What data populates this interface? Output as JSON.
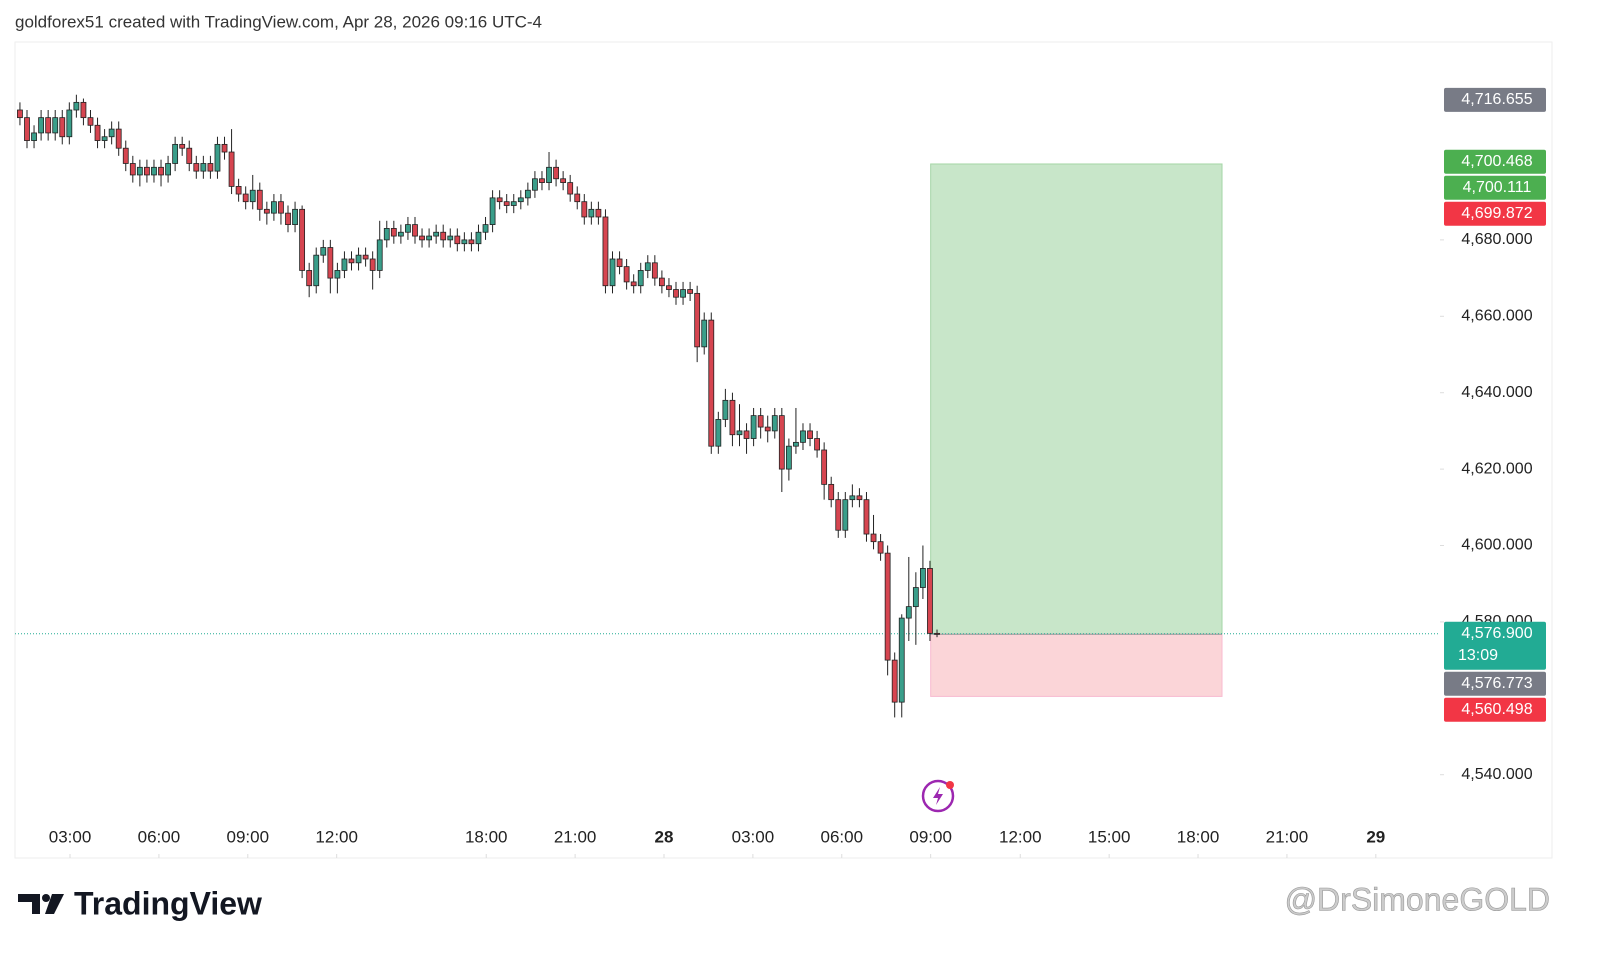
{
  "header": "goldforex51 created with TradingView.com, Apr 28, 2026 09:16 UTC-4",
  "chart_data": {
    "type": "candlestick",
    "up_color": "#3a9e8a",
    "down_color": "#d64550",
    "candles": [
      [
        4714,
        4716,
        4710,
        4712
      ],
      [
        4712,
        4714,
        4704,
        4706
      ],
      [
        4706,
        4710,
        4704,
        4708
      ],
      [
        4708,
        4714,
        4706,
        4712
      ],
      [
        4712,
        4714,
        4706,
        4708
      ],
      [
        4708,
        4714,
        4706,
        4712
      ],
      [
        4712,
        4714,
        4705,
        4707
      ],
      [
        4707,
        4716,
        4705,
        4714
      ],
      [
        4714,
        4718,
        4712,
        4716
      ],
      [
        4716,
        4717,
        4710,
        4712
      ],
      [
        4712,
        4714,
        4708,
        4710
      ],
      [
        4710,
        4712,
        4704,
        4706
      ],
      [
        4706,
        4709,
        4704,
        4707
      ],
      [
        4707,
        4711,
        4705,
        4709
      ],
      [
        4709,
        4711,
        4702,
        4704
      ],
      [
        4704,
        4706,
        4698,
        4700
      ],
      [
        4700,
        4702,
        4695,
        4697
      ],
      [
        4697,
        4701,
        4694,
        4699
      ],
      [
        4699,
        4701,
        4695,
        4697
      ],
      [
        4697,
        4701,
        4695,
        4699
      ],
      [
        4699,
        4701,
        4694,
        4697
      ],
      [
        4697,
        4702,
        4695,
        4700
      ],
      [
        4700,
        4707,
        4698,
        4705
      ],
      [
        4705,
        4707,
        4702,
        4704
      ],
      [
        4704,
        4706,
        4698,
        4700
      ],
      [
        4700,
        4702,
        4696,
        4698
      ],
      [
        4698,
        4702,
        4696,
        4700
      ],
      [
        4700,
        4702,
        4696,
        4698
      ],
      [
        4698,
        4707,
        4696,
        4705
      ],
      [
        4705,
        4707,
        4701,
        4703
      ],
      [
        4703,
        4709,
        4692,
        4694
      ],
      [
        4694,
        4696,
        4690,
        4692
      ],
      [
        4692,
        4694,
        4688,
        4690
      ],
      [
        4690,
        4697,
        4688,
        4693
      ],
      [
        4693,
        4695,
        4685,
        4688
      ],
      [
        4688,
        4690,
        4684,
        4687
      ],
      [
        4687,
        4692,
        4685,
        4690
      ],
      [
        4690,
        4692,
        4684,
        4687
      ],
      [
        4687,
        4689,
        4682,
        4684
      ],
      [
        4684,
        4690,
        4682,
        4688
      ],
      [
        4688,
        4689,
        4670,
        4672
      ],
      [
        4672,
        4674,
        4665,
        4668
      ],
      [
        4668,
        4678,
        4666,
        4676
      ],
      [
        4676,
        4680,
        4674,
        4678
      ],
      [
        4678,
        4680,
        4666,
        4670
      ],
      [
        4670,
        4674,
        4666,
        4672
      ],
      [
        4672,
        4677,
        4670,
        4675
      ],
      [
        4675,
        4677,
        4672,
        4674
      ],
      [
        4674,
        4678,
        4672,
        4676
      ],
      [
        4676,
        4678,
        4673,
        4675
      ],
      [
        4675,
        4677,
        4667,
        4672
      ],
      [
        4672,
        4685,
        4670,
        4680
      ],
      [
        4680,
        4685,
        4678,
        4683
      ],
      [
        4683,
        4685,
        4679,
        4681
      ],
      [
        4681,
        4684,
        4679,
        4682
      ],
      [
        4682,
        4686,
        4680,
        4684
      ],
      [
        4684,
        4686,
        4679,
        4681
      ],
      [
        4681,
        4683,
        4678,
        4680
      ],
      [
        4680,
        4683,
        4678,
        4681
      ],
      [
        4681,
        4684,
        4679,
        4682
      ],
      [
        4682,
        4684,
        4678,
        4680
      ],
      [
        4680,
        4683,
        4678,
        4681
      ],
      [
        4681,
        4683,
        4677,
        4679
      ],
      [
        4679,
        4682,
        4677,
        4680
      ],
      [
        4680,
        4682,
        4677,
        4679
      ],
      [
        4679,
        4684,
        4677,
        4682
      ],
      [
        4682,
        4686,
        4680,
        4684
      ],
      [
        4684,
        4693,
        4682,
        4691
      ],
      [
        4691,
        4693,
        4688,
        4690
      ],
      [
        4690,
        4692,
        4687,
        4689
      ],
      [
        4689,
        4692,
        4687,
        4690
      ],
      [
        4690,
        4693,
        4688,
        4691
      ],
      [
        4691,
        4695,
        4689,
        4693
      ],
      [
        4693,
        4698,
        4691,
        4696
      ],
      [
        4696,
        4698,
        4693,
        4695
      ],
      [
        4695,
        4703,
        4693,
        4699
      ],
      [
        4699,
        4701,
        4694,
        4696
      ],
      [
        4696,
        4698,
        4693,
        4695
      ],
      [
        4695,
        4697,
        4690,
        4692
      ],
      [
        4692,
        4694,
        4688,
        4690
      ],
      [
        4690,
        4692,
        4684,
        4686
      ],
      [
        4686,
        4690,
        4684,
        4688
      ],
      [
        4688,
        4690,
        4684,
        4686
      ],
      [
        4686,
        4688,
        4666,
        4668
      ],
      [
        4668,
        4677,
        4666,
        4675
      ],
      [
        4675,
        4677,
        4671,
        4673
      ],
      [
        4673,
        4675,
        4667,
        4669
      ],
      [
        4669,
        4671,
        4666,
        4668
      ],
      [
        4668,
        4674,
        4666,
        4672
      ],
      [
        4672,
        4676,
        4670,
        4674
      ],
      [
        4674,
        4676,
        4668,
        4670
      ],
      [
        4670,
        4672,
        4666,
        4668
      ],
      [
        4668,
        4670,
        4665,
        4667
      ],
      [
        4667,
        4669,
        4663,
        4665
      ],
      [
        4665,
        4669,
        4663,
        4667
      ],
      [
        4667,
        4669,
        4664,
        4666
      ],
      [
        4666,
        4668,
        4648,
        4652
      ],
      [
        4652,
        4661,
        4650,
        4659
      ],
      [
        4659,
        4661,
        4624,
        4626
      ],
      [
        4626,
        4635,
        4624,
        4633
      ],
      [
        4633,
        4641,
        4631,
        4638
      ],
      [
        4638,
        4640,
        4626,
        4629
      ],
      [
        4629,
        4637,
        4626,
        4630
      ],
      [
        4630,
        4632,
        4624,
        4628
      ],
      [
        4628,
        4636,
        4626,
        4634
      ],
      [
        4634,
        4636,
        4628,
        4631
      ],
      [
        4631,
        4634,
        4627,
        4630
      ],
      [
        4630,
        4636,
        4628,
        4634
      ],
      [
        4634,
        4636,
        4614,
        4620
      ],
      [
        4620,
        4628,
        4617,
        4626
      ],
      [
        4626,
        4636,
        4624,
        4627
      ],
      [
        4627,
        4632,
        4625,
        4630
      ],
      [
        4630,
        4632,
        4626,
        4628
      ],
      [
        4628,
        4630,
        4623,
        4625
      ],
      [
        4625,
        4627,
        4612,
        4616
      ],
      [
        4616,
        4618,
        4610,
        4612
      ],
      [
        4612,
        4614,
        4602,
        4604
      ],
      [
        4604,
        4614,
        4602,
        4612
      ],
      [
        4612,
        4616,
        4610,
        4613
      ],
      [
        4613,
        4615,
        4610,
        4612
      ],
      [
        4612,
        4614,
        4601,
        4603
      ],
      [
        4603,
        4608,
        4599,
        4601
      ],
      [
        4601,
        4603,
        4596,
        4598
      ],
      [
        4598,
        4600,
        4566,
        4570
      ],
      [
        4570,
        4572,
        4555,
        4559
      ],
      [
        4559,
        4582,
        4555,
        4581
      ],
      [
        4581,
        4597,
        4575,
        4584
      ],
      [
        4584,
        4593,
        4574,
        4589
      ],
      [
        4589,
        4600,
        4586,
        4594
      ],
      [
        4594,
        4596,
        4575,
        4577
      ],
      [
        4577,
        4578,
        4576,
        4576.9
      ]
    ],
    "xlim": [
      -0.7,
      201.3
    ],
    "xticks": [
      {
        "value": 7.1,
        "label": "03:00"
      },
      {
        "value": 19.7,
        "label": "06:00"
      },
      {
        "value": 32.3,
        "label": "09:00"
      },
      {
        "value": 44.9,
        "label": "12:00"
      },
      {
        "value": 66.1,
        "label": "18:00"
      },
      {
        "value": 78.7,
        "label": "21:00"
      },
      {
        "value": 91.3,
        "label": "28"
      },
      {
        "value": 103.9,
        "label": "03:00"
      },
      {
        "value": 116.5,
        "label": "06:00"
      },
      {
        "value": 129.1,
        "label": "09:00"
      },
      {
        "value": 141.8,
        "label": "12:00"
      },
      {
        "value": 154.4,
        "label": "15:00"
      },
      {
        "value": 167,
        "label": "18:00"
      },
      {
        "value": 179.6,
        "label": "21:00"
      },
      {
        "value": 192.2,
        "label": "29"
      }
    ],
    "ylim": [
      4518.2,
      4731.8
    ],
    "yticks": [
      {
        "value": 4540,
        "label": "4,540.000"
      },
      {
        "value": 4580,
        "label": "4,580.000"
      },
      {
        "value": 4600,
        "label": "4,600.000"
      },
      {
        "value": 4620,
        "label": "4,620.000"
      },
      {
        "value": 4640,
        "label": "4,640.000"
      },
      {
        "value": 4660,
        "label": "4,660.000"
      },
      {
        "value": 4680,
        "label": "4,680.000"
      }
    ],
    "current_price": 4576.9,
    "position": {
      "start": 129.1,
      "end": 170.4,
      "entry": 4576.773,
      "target": 4699.872,
      "stop": 4560.498,
      "profit_color": "#c8e6c9",
      "loss_color": "#fbd5d8"
    },
    "price_labels": [
      {
        "value": 4716.655,
        "label": "4,716.655",
        "color": "#787b86"
      },
      {
        "value": 4700.468,
        "label": "4,700.468",
        "color": "#4caf50"
      },
      {
        "value": 4700.111,
        "label": "4,700.111",
        "color": "#4caf50"
      },
      {
        "value": 4699.872,
        "label": "4,699.872",
        "color": "#f23645"
      },
      {
        "value": 4576.9,
        "label": "4,576.900",
        "sub": "13:09",
        "color": "#22ab94"
      },
      {
        "value": 4576.773,
        "label": "4,576.773",
        "color": "#787b86"
      },
      {
        "value": 4560.498,
        "label": "4,560.498",
        "color": "#f23645"
      }
    ]
  },
  "footer": {
    "logo": "TradingView",
    "watermark": "@DrSimoneGOLD"
  }
}
